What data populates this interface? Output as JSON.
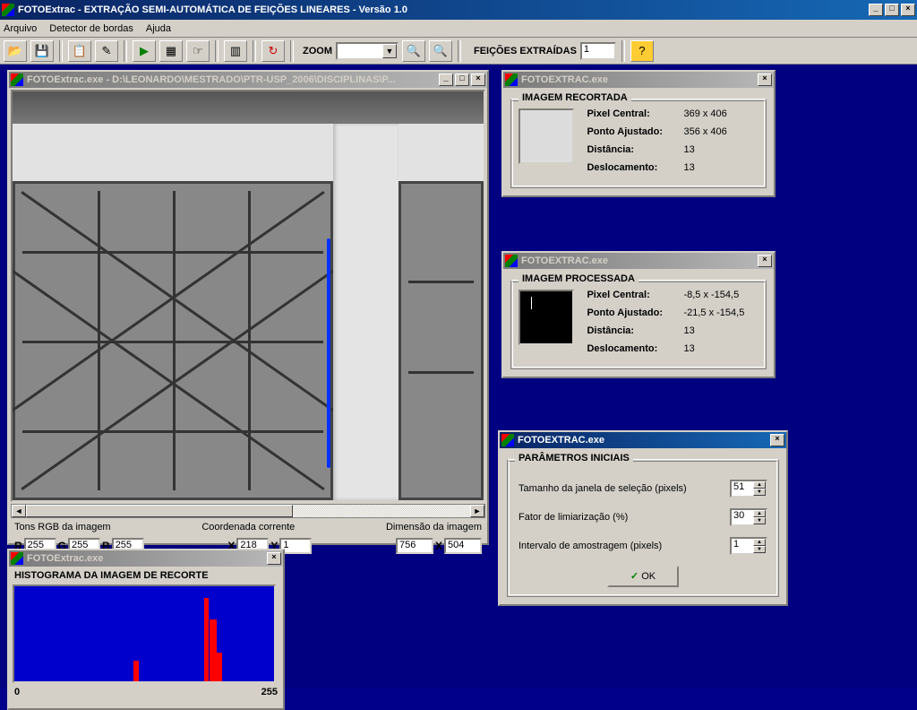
{
  "app": {
    "title": "FOTOExtrac - EXTRAÇÃO SEMI-AUTOMÁTICA DE FEIÇÕES LINEARES - Versão 1.0"
  },
  "menu": {
    "arquivo": "Arquivo",
    "detector": "Detector de bordas",
    "ajuda": "Ajuda"
  },
  "toolbar": {
    "zoom_label": "ZOOM",
    "features_label": "FEIÇÕES EXTRAÍDAS",
    "features_value": "1"
  },
  "image_window": {
    "title": "FOTOExtrac.exe - D:\\LEONARDO\\MESTRADO\\PTR-USP_2006\\DISCIPLINAS\\P...",
    "rgb_label": "Tons RGB da imagem",
    "coord_label": "Coordenada corrente",
    "dim_label": "Dimensão da imagem",
    "R": "255",
    "G": "255",
    "B": "255",
    "X": "218",
    "Y": "1",
    "W": "756",
    "H": "504"
  },
  "panel_recortada": {
    "title": "FOTOEXTRAC.exe",
    "group": "IMAGEM RECORTADA",
    "pixel_central_k": "Pixel Central:",
    "pixel_central_v": "369 x 406",
    "ponto_k": "Ponto Ajustado:",
    "ponto_v": "356 x 406",
    "dist_k": "Distância:",
    "dist_v": "13",
    "desloc_k": "Deslocamento:",
    "desloc_v": "13"
  },
  "panel_processada": {
    "title": "FOTOEXTRAC.exe",
    "group": "IMAGEM PROCESSADA",
    "pixel_central_k": "Pixel Central:",
    "pixel_central_v": "-8,5 x -154,5",
    "ponto_k": "Ponto Ajustado:",
    "ponto_v": "-21,5 x -154,5",
    "dist_k": "Distância:",
    "dist_v": "13",
    "desloc_k": "Deslocamento:",
    "desloc_v": "13"
  },
  "panel_params": {
    "title": "FOTOEXTRAC.exe",
    "group": "PARÂMETROS INICIAIS",
    "p1_label": "Tamanho da janela de seleção (pixels)",
    "p1_val": "51",
    "p2_label": "Fator de limiarização (%)",
    "p2_val": "30",
    "p3_label": "Intervalo de amostragem (pixels)",
    "p3_val": "1",
    "ok": "OK"
  },
  "histogram": {
    "title": "FOTOExtrac.exe",
    "group": "HISTOGRAMA DA IMAGEM DE RECORTE",
    "min": "0",
    "max": "255",
    "background": "#0000cc",
    "bar_color": "#ff0000",
    "bars": [
      {
        "x_pct": 46,
        "w_pct": 2,
        "h_pct": 22
      },
      {
        "x_pct": 73,
        "w_pct": 2,
        "h_pct": 88
      },
      {
        "x_pct": 75,
        "w_pct": 3,
        "h_pct": 65
      },
      {
        "x_pct": 78,
        "w_pct": 2,
        "h_pct": 30
      }
    ]
  },
  "blue_annotation": {
    "left_pct": 66.8,
    "top_pct": 36,
    "height_pct": 56,
    "color": "#0030ff"
  }
}
